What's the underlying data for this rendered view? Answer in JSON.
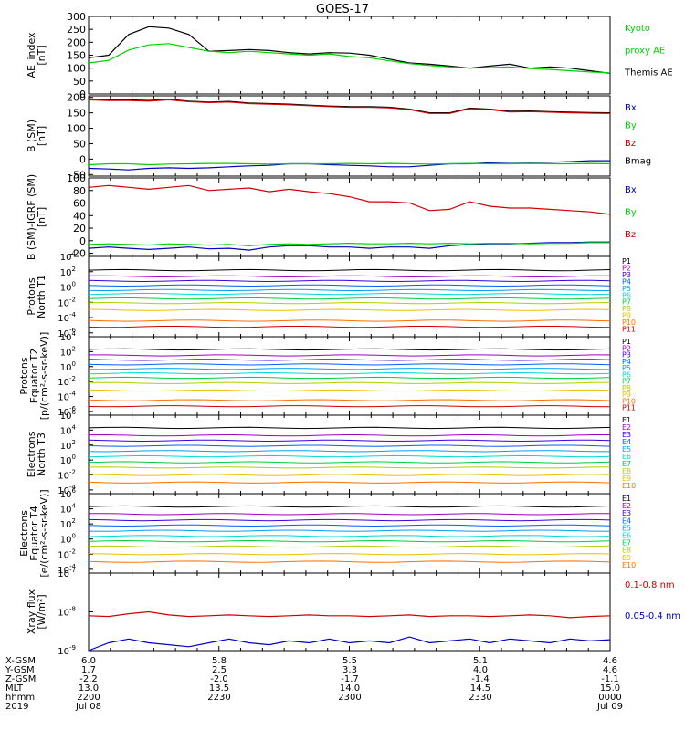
{
  "title": "GOES-17",
  "colors": {
    "black": "#000000",
    "green": "#00d000",
    "red": "#d00000",
    "blue": "#0000c8",
    "p_colors": [
      "#000000",
      "#a000c0",
      "#4000e0",
      "#0060ff",
      "#00a0ff",
      "#00d8d8",
      "#00d040",
      "#b0d000",
      "#e8c000",
      "#ff7000",
      "#d00000"
    ]
  },
  "chart_data": [
    {
      "type": "line",
      "ylabel": [
        "AE_index",
        "[nT]"
      ],
      "yticks": [
        "300",
        "250",
        "200",
        "150",
        "100",
        "50",
        "0"
      ],
      "ylim": [
        0,
        300
      ],
      "legend": [
        {
          "text": "Kyoto",
          "color": "#00d000"
        },
        {
          "text": "proxy AE",
          "color": "#00d000"
        },
        {
          "text": "Themis AE",
          "color": "#000000"
        }
      ],
      "series": [
        {
          "name": "Themis AE",
          "color": "#000000",
          "values": [
            140,
            150,
            230,
            260,
            255,
            230,
            165,
            168,
            172,
            168,
            160,
            155,
            160,
            158,
            150,
            135,
            120,
            115,
            108,
            100,
            108,
            115,
            100,
            105,
            100,
            90,
            80
          ]
        },
        {
          "name": "Kyoto proxy AE",
          "color": "#00d000",
          "values": [
            120,
            130,
            170,
            190,
            195,
            180,
            165,
            160,
            165,
            160,
            155,
            150,
            155,
            145,
            140,
            128,
            118,
            110,
            105,
            100,
            102,
            105,
            98,
            95,
            90,
            85,
            82
          ]
        }
      ]
    },
    {
      "type": "line",
      "ylabel": [
        "B (SM)",
        "[nT]"
      ],
      "yticks": [
        "200",
        "150",
        "100",
        "50",
        "0",
        "-50"
      ],
      "ylim": [
        -55,
        205
      ],
      "legend": [
        {
          "text": "Bx",
          "color": "#0000c8"
        },
        {
          "text": "By",
          "color": "#00d000"
        },
        {
          "text": "Bz",
          "color": "#d00000"
        },
        {
          "text": "Bmag",
          "color": "#000000"
        }
      ],
      "series": [
        {
          "name": "Bx",
          "color": "#0000c8",
          "values": [
            -30,
            -32,
            -35,
            -30,
            -28,
            -30,
            -28,
            -25,
            -22,
            -20,
            -15,
            -15,
            -18,
            -20,
            -22,
            -25,
            -25,
            -20,
            -15,
            -15,
            -12,
            -10,
            -10,
            -10,
            -8,
            -5,
            -5
          ]
        },
        {
          "name": "By",
          "color": "#00d000",
          "values": [
            -18,
            -15,
            -15,
            -18,
            -16,
            -15,
            -14,
            -14,
            -15,
            -16,
            -15,
            -15,
            -15,
            -14,
            -15,
            -14,
            -15,
            -16,
            -15,
            -14,
            -15,
            -15,
            -14,
            -15,
            -15,
            -14,
            -15
          ]
        },
        {
          "name": "Bmag",
          "color": "#000000",
          "values": [
            195,
            193,
            192,
            190,
            194,
            188,
            185,
            187,
            182,
            180,
            178,
            175,
            172,
            170,
            170,
            168,
            162,
            150,
            150,
            165,
            162,
            155,
            156,
            154,
            152,
            151,
            150
          ]
        },
        {
          "name": "Bz",
          "color": "#d00000",
          "values": [
            192,
            190,
            190,
            188,
            192,
            186,
            183,
            185,
            180,
            178,
            176,
            173,
            170,
            168,
            168,
            166,
            160,
            148,
            148,
            163,
            160,
            153,
            154,
            152,
            150,
            149,
            148
          ]
        }
      ]
    },
    {
      "type": "line",
      "ylabel": [
        "B (SM)-IGRF (SM)",
        "[nT]"
      ],
      "yticks": [
        "100",
        "80",
        "60",
        "40",
        "20",
        "0",
        "-20"
      ],
      "ylim": [
        -25,
        100
      ],
      "legend": [
        {
          "text": "Bx",
          "color": "#0000c8"
        },
        {
          "text": "By",
          "color": "#00d000"
        },
        {
          "text": "Bz",
          "color": "#d00000"
        }
      ],
      "series": [
        {
          "name": "Bx",
          "color": "#0000c8",
          "values": [
            -12,
            -10,
            -12,
            -14,
            -12,
            -10,
            -13,
            -12,
            -15,
            -10,
            -8,
            -8,
            -10,
            -10,
            -12,
            -10,
            -10,
            -12,
            -8,
            -6,
            -5,
            -5,
            -4,
            -3,
            -3,
            -2,
            -2
          ]
        },
        {
          "name": "By",
          "color": "#00d000",
          "values": [
            -6,
            -5,
            -6,
            -7,
            -5,
            -6,
            -7,
            -6,
            -8,
            -6,
            -5,
            -6,
            -5,
            -4,
            -5,
            -5,
            -4,
            -5,
            -4,
            -5,
            -4,
            -4,
            -5,
            -4,
            -4,
            -3,
            -3
          ]
        },
        {
          "name": "Bz",
          "color": "#d00000",
          "values": [
            85,
            88,
            85,
            82,
            85,
            88,
            80,
            82,
            84,
            78,
            82,
            78,
            75,
            70,
            62,
            62,
            60,
            48,
            50,
            62,
            55,
            52,
            52,
            50,
            48,
            46,
            42
          ]
        }
      ]
    },
    {
      "type": "line",
      "ylabel": [
        "Protons",
        "North T1"
      ],
      "yticks_exp": [
        "4",
        "2",
        "0",
        "-2",
        "-4",
        "-6"
      ],
      "log_range": [
        -6.5,
        4
      ],
      "legend": [
        "P1",
        "P2",
        "P3",
        "P4",
        "P5",
        "P6",
        "P7",
        "P8",
        "P9",
        "P10",
        "P11"
      ],
      "levels": [
        2.2,
        1.4,
        0.8,
        0.2,
        -0.4,
        -0.9,
        -1.5,
        -2.1,
        -3,
        -4.4,
        -5.2
      ]
    },
    {
      "type": "line",
      "ylabel": [
        "Protons",
        "Equator T2",
        "[p/(cm²-s-sr-keV)]"
      ],
      "yticks_exp": [
        "4",
        "2",
        "0",
        "-2",
        "-4",
        "-6"
      ],
      "log_range": [
        -6.5,
        4
      ],
      "legend": [
        "P1",
        "P2",
        "P3",
        "P4",
        "P5",
        "P6",
        "P7",
        "P8",
        "P9",
        "P10",
        "P11"
      ],
      "levels": [
        2.3,
        1.5,
        0.9,
        0.3,
        -0.3,
        -0.9,
        -1.5,
        -2.2,
        -3.2,
        -4.5,
        -5.3
      ]
    },
    {
      "type": "line",
      "ylabel": [
        "Electrons",
        "North T3"
      ],
      "yticks_exp": [
        "6",
        "4",
        "2",
        "0",
        "-2",
        "-4"
      ],
      "log_range": [
        -4.5,
        6
      ],
      "legend": [
        "E1",
        "E2",
        "E3",
        "E4",
        "E5",
        "E6",
        "E7",
        "E8",
        "E9",
        "E10"
      ],
      "levels": [
        4.3,
        3.3,
        2.6,
        1.9,
        1.2,
        0.5,
        -0.3,
        -1.0,
        -2.0,
        -3.0
      ]
    },
    {
      "type": "line",
      "ylabel": [
        "Electrons",
        "Equator T4",
        "[e/(cm²-s-sr-keV)]"
      ],
      "yticks_exp": [
        "6",
        "4",
        "2",
        "0",
        "-2",
        "-4"
      ],
      "log_range": [
        -4.5,
        6
      ],
      "legend": [
        "E1",
        "E2",
        "E3",
        "E4",
        "E5",
        "E6",
        "E7",
        "E8",
        "E9",
        "E10"
      ],
      "levels": [
        4.3,
        3.3,
        2.5,
        1.8,
        1.1,
        0.4,
        -0.3,
        -1.0,
        -2.0,
        -3.0
      ]
    },
    {
      "type": "line",
      "ylabel": [
        "Xray flux",
        "[W/m²]"
      ],
      "yticks_exp": [
        "-7",
        "-8",
        "-9"
      ],
      "log_range": [
        -9,
        -7
      ],
      "legend": [
        {
          "text": "0.1-0.8 nm",
          "color": "#d00000"
        },
        {
          "text": "0.05-0.4 nm",
          "color": "#0000c8"
        }
      ],
      "series": [
        {
          "name": "0.1-0.8 nm",
          "color": "#d00000",
          "values": [
            -8.1,
            -8.12,
            -8.05,
            -8.0,
            -8.08,
            -8.12,
            -8.1,
            -8.08,
            -8.1,
            -8.12,
            -8.1,
            -8.08,
            -8.1,
            -8.1,
            -8.12,
            -8.1,
            -8.08,
            -8.12,
            -8.1,
            -8.1,
            -8.12,
            -8.1,
            -8.08,
            -8.1,
            -8.15,
            -8.12,
            -8.1
          ]
        },
        {
          "name": "0.05-0.4 nm",
          "color": "#0000c8",
          "values": [
            -9.0,
            -8.8,
            -8.7,
            -8.8,
            -8.85,
            -8.9,
            -8.8,
            -8.7,
            -8.8,
            -8.85,
            -8.75,
            -8.8,
            -8.7,
            -8.8,
            -8.75,
            -8.8,
            -8.65,
            -8.8,
            -8.75,
            -8.7,
            -8.8,
            -8.7,
            -8.75,
            -8.8,
            -8.7,
            -8.75,
            -8.72
          ]
        }
      ]
    }
  ],
  "x_axis": {
    "row_labels": [
      "X-GSM",
      "Y-GSM",
      "Z-GSM",
      "MLT",
      "hhmm",
      "2019"
    ],
    "columns": [
      {
        "values": [
          "6.0",
          "1.7",
          "-2.2",
          "13.0",
          "2200",
          "Jul 08"
        ]
      },
      {
        "values": [
          "5.8",
          "2.5",
          "-2.0",
          "13.5",
          "2230",
          ""
        ]
      },
      {
        "values": [
          "5.5",
          "3.3",
          "-1.7",
          "14.0",
          "2300",
          ""
        ]
      },
      {
        "values": [
          "5.1",
          "4.0",
          "-1.4",
          "14.5",
          "2330",
          ""
        ]
      },
      {
        "values": [
          "4.6",
          "4.6",
          "-1.1",
          "15.0",
          "0000",
          "Jul 09"
        ]
      }
    ]
  }
}
